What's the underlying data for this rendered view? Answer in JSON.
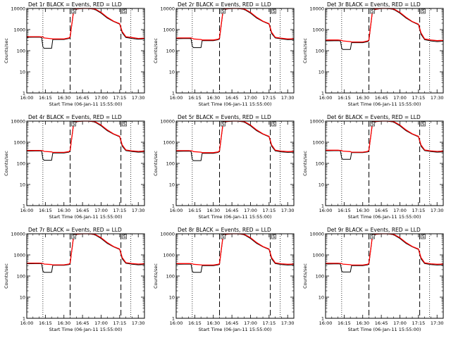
{
  "chart_data": [
    {
      "type": "line",
      "title": "Det 1r BLACK = Events, RED = LLD",
      "xlabel": "Start Time (06-Jan-11 15:55:00)",
      "ylabel": "Counts/sec",
      "yscale": "log",
      "ylim": [
        1,
        10000
      ],
      "xlim": [
        "16:00",
        "17:35"
      ],
      "xticks": [
        "16:00",
        "16:15",
        "16:30",
        "16:45",
        "17:00",
        "17:15",
        "17:30"
      ],
      "yticks": [
        "1",
        "10",
        "100",
        "1000",
        "10000"
      ],
      "dashed_lines": [
        "16:35",
        "17:16"
      ],
      "dotted_lines": [
        "16:13",
        "17:24"
      ],
      "markers": [
        "S",
        "S"
      ],
      "x": [
        "16:00",
        "16:10",
        "16:12",
        "16:13",
        "16:14",
        "16:20",
        "16:21",
        "16:30",
        "16:34",
        "16:35",
        "16:38",
        "16:45",
        "16:50",
        "16:55",
        "17:00",
        "17:05",
        "17:10",
        "17:15",
        "17:17",
        "17:20",
        "17:25",
        "17:30",
        "17:35"
      ],
      "series": [
        {
          "name": "Events",
          "color": "#000000",
          "values": [
            430,
            440,
            420,
            150,
            130,
            130,
            340,
            340,
            380,
            420,
            9000,
            10000,
            10000,
            9000,
            6000,
            3500,
            2400,
            1800,
            700,
            420,
            380,
            350,
            360
          ]
        },
        {
          "name": "LLD",
          "color": "#ff0000",
          "values": [
            460,
            460,
            450,
            450,
            400,
            370,
            360,
            360,
            400,
            450,
            9500,
            10000,
            10000,
            9500,
            6500,
            3800,
            2500,
            1900,
            800,
            460,
            420,
            380,
            390
          ]
        }
      ]
    },
    {
      "type": "line",
      "title": "Det 2r BLACK = Events, RED = LLD",
      "xlabel": "Start Time (06-Jan-11 15:55:00)",
      "ylabel": "Counts/sec",
      "yscale": "log",
      "ylim": [
        1,
        10000
      ],
      "xlim": [
        "16:00",
        "17:35"
      ],
      "xticks": [
        "16:00",
        "16:15",
        "16:30",
        "16:45",
        "17:00",
        "17:15",
        "17:30"
      ],
      "yticks": [
        "1",
        "10",
        "100",
        "1000",
        "10000"
      ],
      "dashed_lines": [
        "16:35",
        "17:16"
      ],
      "dotted_lines": [
        "16:13",
        "17:24"
      ],
      "markers": [
        "S",
        "S"
      ],
      "x": [
        "16:00",
        "16:10",
        "16:12",
        "16:13",
        "16:14",
        "16:20",
        "16:21",
        "16:30",
        "16:34",
        "16:35",
        "16:38",
        "16:45",
        "16:50",
        "16:55",
        "17:00",
        "17:05",
        "17:10",
        "17:15",
        "17:17",
        "17:20",
        "17:25",
        "17:30",
        "17:35"
      ],
      "series": [
        {
          "name": "Events",
          "color": "#000000",
          "values": [
            370,
            380,
            370,
            160,
            140,
            140,
            300,
            300,
            330,
            370,
            9000,
            10000,
            10000,
            9000,
            6000,
            3500,
            2400,
            1800,
            650,
            400,
            360,
            330,
            340
          ]
        },
        {
          "name": "LLD",
          "color": "#ff0000",
          "values": [
            400,
            400,
            400,
            390,
            360,
            340,
            320,
            320,
            350,
            400,
            9500,
            10000,
            10000,
            9500,
            6500,
            3800,
            2500,
            1900,
            750,
            430,
            390,
            360,
            370
          ]
        }
      ]
    },
    {
      "type": "line",
      "title": "Det 3r BLACK = Events, RED = LLD",
      "xlabel": "Start Time (06-Jan-11 15:55:00)",
      "ylabel": "Counts/sec",
      "yscale": "log",
      "ylim": [
        1,
        10000
      ],
      "xlim": [
        "16:00",
        "17:35"
      ],
      "xticks": [
        "16:00",
        "16:15",
        "16:30",
        "16:45",
        "17:00",
        "17:15",
        "17:30"
      ],
      "yticks": [
        "1",
        "10",
        "100",
        "1000",
        "10000"
      ],
      "dashed_lines": [
        "16:35",
        "17:16"
      ],
      "dotted_lines": [
        "16:13",
        "17:24"
      ],
      "markers": [
        "S",
        "S"
      ],
      "x": [
        "16:00",
        "16:10",
        "16:12",
        "16:13",
        "16:14",
        "16:20",
        "16:21",
        "16:30",
        "16:34",
        "16:35",
        "16:38",
        "16:45",
        "16:50",
        "16:55",
        "17:00",
        "17:05",
        "17:10",
        "17:15",
        "17:17",
        "17:20",
        "17:25",
        "17:30",
        "17:35"
      ],
      "series": [
        {
          "name": "Events",
          "color": "#000000",
          "values": [
            290,
            300,
            290,
            130,
            115,
            115,
            240,
            240,
            270,
            300,
            8500,
            10000,
            10000,
            9000,
            6000,
            3500,
            2300,
            1700,
            600,
            330,
            290,
            270,
            280
          ]
        },
        {
          "name": "LLD",
          "color": "#ff0000",
          "values": [
            320,
            320,
            315,
            310,
            290,
            270,
            260,
            260,
            290,
            320,
            9000,
            10000,
            10000,
            9500,
            6500,
            3800,
            2400,
            1800,
            700,
            360,
            320,
            300,
            310
          ]
        }
      ]
    },
    {
      "type": "line",
      "title": "Det 4r BLACK = Events, RED = LLD",
      "xlabel": "Start Time (06-Jan-11 15:55:00)",
      "ylabel": "Counts/sec",
      "yscale": "log",
      "ylim": [
        1,
        10000
      ],
      "xlim": [
        "16:00",
        "17:35"
      ],
      "xticks": [
        "16:00",
        "16:15",
        "16:30",
        "16:45",
        "17:00",
        "17:15",
        "17:30"
      ],
      "yticks": [
        "1",
        "10",
        "100",
        "1000",
        "10000"
      ],
      "dashed_lines": [
        "16:35",
        "17:16"
      ],
      "dotted_lines": [
        "16:13",
        "17:24"
      ],
      "markers": [
        "S",
        "S"
      ],
      "x": [
        "16:00",
        "16:10",
        "16:12",
        "16:13",
        "16:14",
        "16:20",
        "16:21",
        "16:30",
        "16:34",
        "16:35",
        "16:38",
        "16:45",
        "16:50",
        "16:55",
        "17:00",
        "17:05",
        "17:10",
        "17:15",
        "17:17",
        "17:20",
        "17:25",
        "17:30",
        "17:35"
      ],
      "series": [
        {
          "name": "Events",
          "color": "#000000",
          "values": [
            380,
            390,
            380,
            160,
            140,
            140,
            310,
            310,
            340,
            380,
            9000,
            10000,
            10000,
            9000,
            6000,
            3500,
            2400,
            1800,
            650,
            400,
            360,
            340,
            350
          ]
        },
        {
          "name": "LLD",
          "color": "#ff0000",
          "values": [
            410,
            410,
            400,
            400,
            370,
            350,
            330,
            330,
            360,
            410,
            9500,
            10000,
            10000,
            9500,
            6500,
            3800,
            2500,
            1900,
            750,
            430,
            390,
            370,
            380
          ]
        }
      ]
    },
    {
      "type": "line",
      "title": "Det 5r BLACK = Events, RED = LLD",
      "xlabel": "Start Time (06-Jan-11 15:55:00)",
      "ylabel": "Counts/sec",
      "yscale": "log",
      "ylim": [
        1,
        10000
      ],
      "xlim": [
        "16:00",
        "17:35"
      ],
      "xticks": [
        "16:00",
        "16:15",
        "16:30",
        "16:45",
        "17:00",
        "17:15",
        "17:30"
      ],
      "yticks": [
        "1",
        "10",
        "100",
        "1000",
        "10000"
      ],
      "dashed_lines": [
        "16:35",
        "17:16"
      ],
      "dotted_lines": [
        "16:13",
        "17:24"
      ],
      "markers": [
        "S",
        "S"
      ],
      "x": [
        "16:00",
        "16:10",
        "16:12",
        "16:13",
        "16:14",
        "16:20",
        "16:21",
        "16:30",
        "16:34",
        "16:35",
        "16:38",
        "16:45",
        "16:50",
        "16:55",
        "17:00",
        "17:05",
        "17:10",
        "17:15",
        "17:17",
        "17:20",
        "17:25",
        "17:30",
        "17:35"
      ],
      "series": [
        {
          "name": "Events",
          "color": "#000000",
          "values": [
            370,
            380,
            370,
            150,
            135,
            135,
            300,
            300,
            330,
            370,
            9000,
            10000,
            10000,
            9000,
            6000,
            3500,
            2400,
            1800,
            650,
            390,
            350,
            330,
            340
          ]
        },
        {
          "name": "LLD",
          "color": "#ff0000",
          "values": [
            400,
            400,
            395,
            390,
            360,
            340,
            320,
            320,
            350,
            400,
            9500,
            10000,
            10000,
            9500,
            6500,
            3800,
            2500,
            1900,
            750,
            420,
            380,
            360,
            370
          ]
        }
      ]
    },
    {
      "type": "line",
      "title": "Det 6r BLACK = Events, RED = LLD",
      "xlabel": "Start Time (06-Jan-11 15:55:00)",
      "ylabel": "Counts/sec",
      "yscale": "log",
      "ylim": [
        1,
        10000
      ],
      "xlim": [
        "16:00",
        "17:35"
      ],
      "xticks": [
        "16:00",
        "16:15",
        "16:30",
        "16:45",
        "17:00",
        "17:15",
        "17:30"
      ],
      "yticks": [
        "1",
        "10",
        "100",
        "1000",
        "10000"
      ],
      "dashed_lines": [
        "16:35",
        "17:16"
      ],
      "dotted_lines": [
        "16:13",
        "17:24"
      ],
      "markers": [
        "S",
        "S"
      ],
      "x": [
        "16:00",
        "16:10",
        "16:12",
        "16:13",
        "16:14",
        "16:20",
        "16:21",
        "16:30",
        "16:34",
        "16:35",
        "16:38",
        "16:45",
        "16:50",
        "16:55",
        "17:00",
        "17:05",
        "17:10",
        "17:15",
        "17:17",
        "17:20",
        "17:25",
        "17:30",
        "17:35"
      ],
      "series": [
        {
          "name": "Events",
          "color": "#000000",
          "values": [
            390,
            400,
            390,
            175,
            155,
            155,
            320,
            320,
            350,
            390,
            9000,
            10000,
            10000,
            9000,
            6000,
            3500,
            2400,
            1800,
            650,
            400,
            360,
            340,
            350
          ]
        },
        {
          "name": "LLD",
          "color": "#ff0000",
          "values": [
            420,
            420,
            410,
            405,
            380,
            360,
            340,
            340,
            370,
            420,
            9500,
            10000,
            10000,
            9500,
            6500,
            3800,
            2500,
            1900,
            750,
            430,
            390,
            370,
            380
          ]
        }
      ]
    },
    {
      "type": "line",
      "title": "Det 7r BLACK = Events, RED = LLD",
      "xlabel": "Start Time (06-Jan-11 15:55:00)",
      "ylabel": "Counts/sec",
      "yscale": "log",
      "ylim": [
        1,
        10000
      ],
      "xlim": [
        "16:00",
        "17:35"
      ],
      "xticks": [
        "16:00",
        "16:15",
        "16:30",
        "16:45",
        "17:00",
        "17:15",
        "17:30"
      ],
      "yticks": [
        "1",
        "10",
        "100",
        "1000",
        "10000"
      ],
      "dashed_lines": [
        "16:35",
        "17:16"
      ],
      "dotted_lines": [
        "16:13",
        "17:24"
      ],
      "markers": [
        "S",
        "S"
      ],
      "x": [
        "16:00",
        "16:10",
        "16:12",
        "16:13",
        "16:14",
        "16:20",
        "16:21",
        "16:30",
        "16:34",
        "16:35",
        "16:38",
        "16:45",
        "16:50",
        "16:55",
        "17:00",
        "17:05",
        "17:10",
        "17:15",
        "17:17",
        "17:20",
        "17:25",
        "17:30",
        "17:35"
      ],
      "series": [
        {
          "name": "Events",
          "color": "#000000",
          "values": [
            380,
            390,
            380,
            170,
            150,
            150,
            320,
            320,
            350,
            380,
            9000,
            10000,
            10000,
            9000,
            6000,
            3500,
            2400,
            1800,
            650,
            400,
            360,
            340,
            350
          ]
        },
        {
          "name": "LLD",
          "color": "#ff0000",
          "values": [
            410,
            410,
            400,
            395,
            370,
            350,
            340,
            340,
            370,
            410,
            9500,
            10000,
            10000,
            9500,
            6500,
            3800,
            2500,
            1900,
            750,
            430,
            390,
            370,
            380
          ]
        }
      ]
    },
    {
      "type": "line",
      "title": "Det 8r BLACK = Events, RED = LLD",
      "xlabel": "Start Time (06-Jan-11 15:55:00)",
      "ylabel": "Counts/sec",
      "yscale": "log",
      "ylim": [
        1,
        10000
      ],
      "xlim": [
        "16:00",
        "17:35"
      ],
      "xticks": [
        "16:00",
        "16:15",
        "16:30",
        "16:45",
        "17:00",
        "17:15",
        "17:30"
      ],
      "yticks": [
        "1",
        "10",
        "100",
        "1000",
        "10000"
      ],
      "dashed_lines": [
        "16:35",
        "17:16"
      ],
      "dotted_lines": [
        "16:13",
        "17:24"
      ],
      "markers": [
        "S",
        "S"
      ],
      "x": [
        "16:00",
        "16:10",
        "16:12",
        "16:13",
        "16:14",
        "16:20",
        "16:21",
        "16:30",
        "16:34",
        "16:35",
        "16:38",
        "16:45",
        "16:50",
        "16:55",
        "17:00",
        "17:05",
        "17:10",
        "17:15",
        "17:17",
        "17:20",
        "17:25",
        "17:30",
        "17:35"
      ],
      "series": [
        {
          "name": "Events",
          "color": "#000000",
          "values": [
            360,
            370,
            360,
            165,
            150,
            150,
            310,
            310,
            340,
            360,
            9000,
            10000,
            10000,
            9000,
            6000,
            3500,
            2400,
            1800,
            650,
            390,
            350,
            330,
            340
          ]
        },
        {
          "name": "LLD",
          "color": "#ff0000",
          "values": [
            390,
            390,
            385,
            380,
            360,
            340,
            330,
            330,
            360,
            390,
            9500,
            10000,
            10000,
            9500,
            6500,
            3800,
            2500,
            1900,
            750,
            420,
            380,
            360,
            370
          ]
        }
      ]
    },
    {
      "type": "line",
      "title": "Det 9r BLACK = Events, RED = LLD",
      "xlabel": "Start Time (06-Jan-11 15:55:00)",
      "ylabel": "Counts/sec",
      "yscale": "log",
      "ylim": [
        1,
        10000
      ],
      "xlim": [
        "16:00",
        "17:35"
      ],
      "xticks": [
        "16:00",
        "16:15",
        "16:30",
        "16:45",
        "17:00",
        "17:15",
        "17:30"
      ],
      "yticks": [
        "1",
        "10",
        "100",
        "1000",
        "10000"
      ],
      "dashed_lines": [
        "16:35",
        "17:16"
      ],
      "dotted_lines": [
        "16:13",
        "17:24"
      ],
      "markers": [
        "S",
        "S"
      ],
      "x": [
        "16:00",
        "16:10",
        "16:12",
        "16:13",
        "16:14",
        "16:20",
        "16:21",
        "16:30",
        "16:34",
        "16:35",
        "16:38",
        "16:45",
        "16:50",
        "16:55",
        "17:00",
        "17:05",
        "17:10",
        "17:15",
        "17:17",
        "17:20",
        "17:25",
        "17:30",
        "17:35"
      ],
      "series": [
        {
          "name": "Events",
          "color": "#000000",
          "values": [
            370,
            380,
            370,
            170,
            155,
            155,
            310,
            310,
            340,
            370,
            9000,
            10000,
            10000,
            9000,
            6000,
            3500,
            2400,
            1800,
            650,
            390,
            350,
            330,
            340
          ]
        },
        {
          "name": "LLD",
          "color": "#ff0000",
          "values": [
            400,
            400,
            395,
            390,
            365,
            345,
            330,
            330,
            360,
            400,
            9500,
            10000,
            10000,
            9500,
            6500,
            3800,
            2500,
            1900,
            750,
            420,
            380,
            360,
            370
          ]
        }
      ]
    }
  ]
}
